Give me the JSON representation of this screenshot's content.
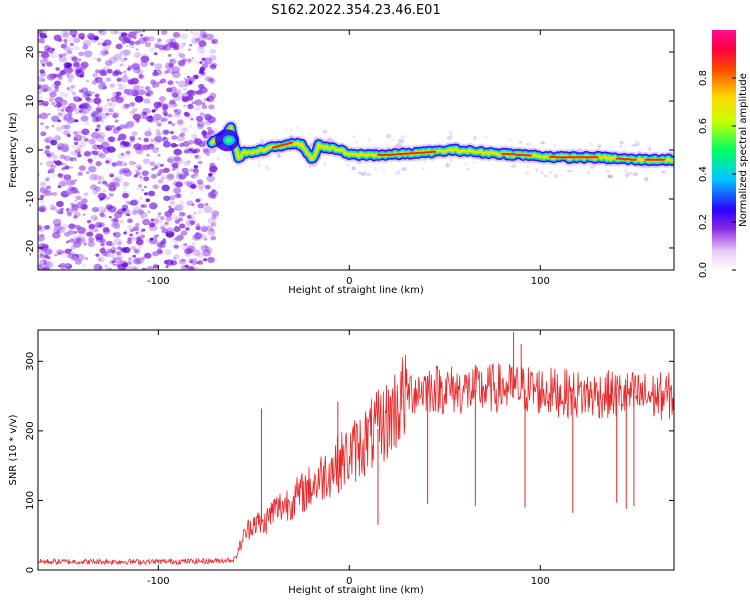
{
  "title": "S162.2022.354.23.46.E01",
  "colors": {
    "signal_line": "#e8282a",
    "spectrogram_scatter": "#8a2be2",
    "track_core": "#ff2020"
  },
  "chart_data": [
    {
      "type": "heatmap",
      "xlabel": "Height of straight line (km)",
      "ylabel": "Frequency (Hz)",
      "xlim": [
        -163,
        170
      ],
      "ylim": [
        -24.5,
        24.5
      ],
      "xticks": [
        -100,
        0,
        100
      ],
      "yticks": [
        -20,
        -10,
        0,
        10,
        20
      ],
      "noise_region_x": [
        -163,
        -70
      ],
      "track": {
        "x": [
          -72,
          -66,
          -62,
          -60,
          -58,
          -55,
          -50,
          -40,
          -30,
          -25,
          -22,
          -19,
          -16,
          -12,
          -5,
          0,
          10,
          20,
          40,
          55,
          70,
          90,
          110,
          130,
          150,
          170
        ],
        "y": [
          1.5,
          2.5,
          4.5,
          1.0,
          -1.5,
          -0.5,
          -0.5,
          0.5,
          1.5,
          1.0,
          -0.5,
          -2.0,
          1.0,
          0.5,
          0.0,
          -1.0,
          -1.0,
          -1.0,
          -0.5,
          0.0,
          -0.5,
          -1.0,
          -1.5,
          -1.5,
          -2.0,
          -2.0
        ]
      },
      "colorbar": {
        "label": "Normalized spectral amplitude",
        "range": [
          0.0,
          1.0
        ],
        "ticks": [
          0.0,
          0.2,
          0.4,
          0.6,
          0.8
        ],
        "tick_labels": [
          "0.0",
          "0.2",
          "0.4",
          "0.6",
          "0.8"
        ]
      }
    },
    {
      "type": "line",
      "xlabel": "Height of straight line (km)",
      "ylabel": "SNR (10 * v/v)",
      "xlim": [
        -163,
        170
      ],
      "ylim": [
        0,
        345
      ],
      "xticks": [
        -100,
        0,
        100
      ],
      "yticks": [
        0,
        100,
        200,
        300
      ],
      "envelope": {
        "x": [
          -163,
          -100,
          -70,
          -60,
          -55,
          -50,
          -45,
          -40,
          -30,
          -20,
          -10,
          0,
          10,
          20,
          25,
          30,
          40,
          60,
          80,
          100,
          120,
          140,
          160,
          170
        ],
        "y": [
          12,
          12,
          13,
          15,
          50,
          70,
          65,
          85,
          100,
          120,
          145,
          165,
          190,
          215,
          235,
          255,
          262,
          258,
          262,
          258,
          252,
          252,
          250,
          250
        ]
      },
      "spikes_up": [
        {
          "x": -46,
          "y": 232
        },
        {
          "x": -6,
          "y": 242
        },
        {
          "x": 86,
          "y": 342
        },
        {
          "x": 90,
          "y": 325
        }
      ],
      "dips": [
        {
          "x": 15,
          "y": 65
        },
        {
          "x": 41,
          "y": 95
        },
        {
          "x": 66,
          "y": 92
        },
        {
          "x": 92,
          "y": 90
        },
        {
          "x": 117,
          "y": 82
        },
        {
          "x": 140,
          "y": 97
        },
        {
          "x": 145,
          "y": 88
        },
        {
          "x": 149,
          "y": 92
        }
      ]
    }
  ]
}
